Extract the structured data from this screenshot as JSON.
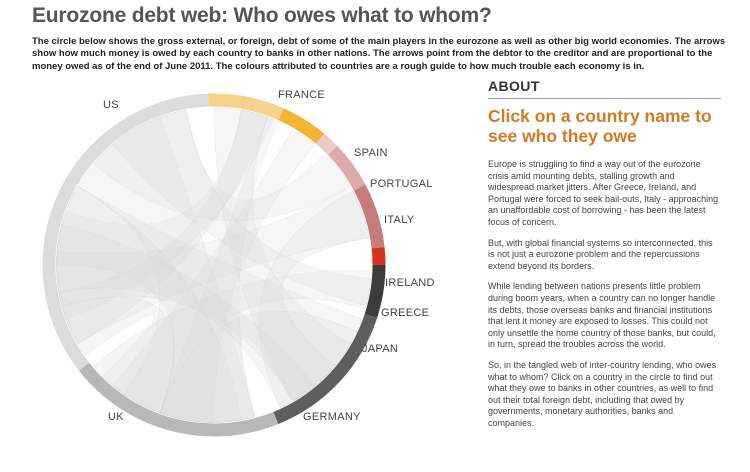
{
  "page": {
    "title": "Eurozone debt web: Who owes what to whom?",
    "intro": "The circle below shows the gross external, or foreign, debt of some of the main players in the eurozone as well as other big world economies. The arrows show how much money is owed by each country to banks in other nations. The arrows point from the debtor to the creditor and are proportional to the money owed as of the end of June 2011. The colours attributed to countries are a rough guide to how much trouble each economy is in."
  },
  "countries": [
    {
      "name": "FRANCE",
      "color": "#f6d28a"
    },
    {
      "name": "SPAIN",
      "color": "#f2b435"
    },
    {
      "name": "PORTUGAL",
      "color": "#efc9c9"
    },
    {
      "name": "ITALY",
      "color": "#dcaaaa"
    },
    {
      "name": "IRELAND",
      "color": "#c77b7b"
    },
    {
      "name": "GREECE",
      "color": "#d4321f"
    },
    {
      "name": "JAPAN",
      "color": "#3c3c3c"
    },
    {
      "name": "GERMANY",
      "color": "#5e5e5e"
    },
    {
      "name": "UK",
      "color": "#b8b8b8"
    },
    {
      "name": "US",
      "color": "#dcdcdc"
    }
  ],
  "sidebar": {
    "heading": "ABOUT",
    "cta": "Click on a country name to see who they owe",
    "paragraphs": [
      "Europe is struggling to find a way out of the eurozone crisis amid mounting debts, stalling growth and widespread market jitters. After Greece, Ireland, and Portugal were forced to seek bail-outs, Italy - approaching an unaffordable cost of borrowing - has been the latest focus of concern.",
      "But, with global financial systems so interconnected, this is not just a eurozone problem and the repercussions extend beyond its borders.",
      "While lending between nations presents little problem during boom years, when a country can no longer handle its debts, those overseas banks and financial institutions that lent it money are exposed to losses. This could not only unsettle the home country of those banks, but could, in turn, spread the troubles across the world.",
      "So, in the tangled web of inter-country lending, who owes what to whom? Click on a country in the circle to find out what they owe to banks in other countries, as well to find out their total foreign debt, including that owed by governments, monetary authorities, banks and companies."
    ]
  }
}
